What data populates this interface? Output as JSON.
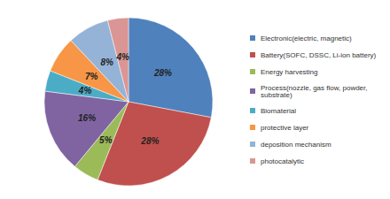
{
  "chart_data": {
    "type": "pie",
    "categories": [
      "Electronic(electric, magnetic)",
      "Battery(SOFC, DSSC, Li-ion battery)",
      "Energy harvesting",
      "Process(nozzle, gas flow, powder, substrate)",
      "Biomaterial",
      "protective layer",
      "deposition mechanism",
      "photocatalytic"
    ],
    "values": [
      28,
      28,
      5,
      16,
      4,
      7,
      8,
      4
    ],
    "value_labels": [
      "28%",
      "28%",
      "5%",
      "16%",
      "4%",
      "7%",
      "8%",
      "4%"
    ],
    "colors": [
      "#4f81bd",
      "#c0504d",
      "#9bbb59",
      "#8064a2",
      "#4bacc6",
      "#f79646",
      "#95b3d7",
      "#d99694"
    ],
    "data_labels": true,
    "legend": "right"
  }
}
